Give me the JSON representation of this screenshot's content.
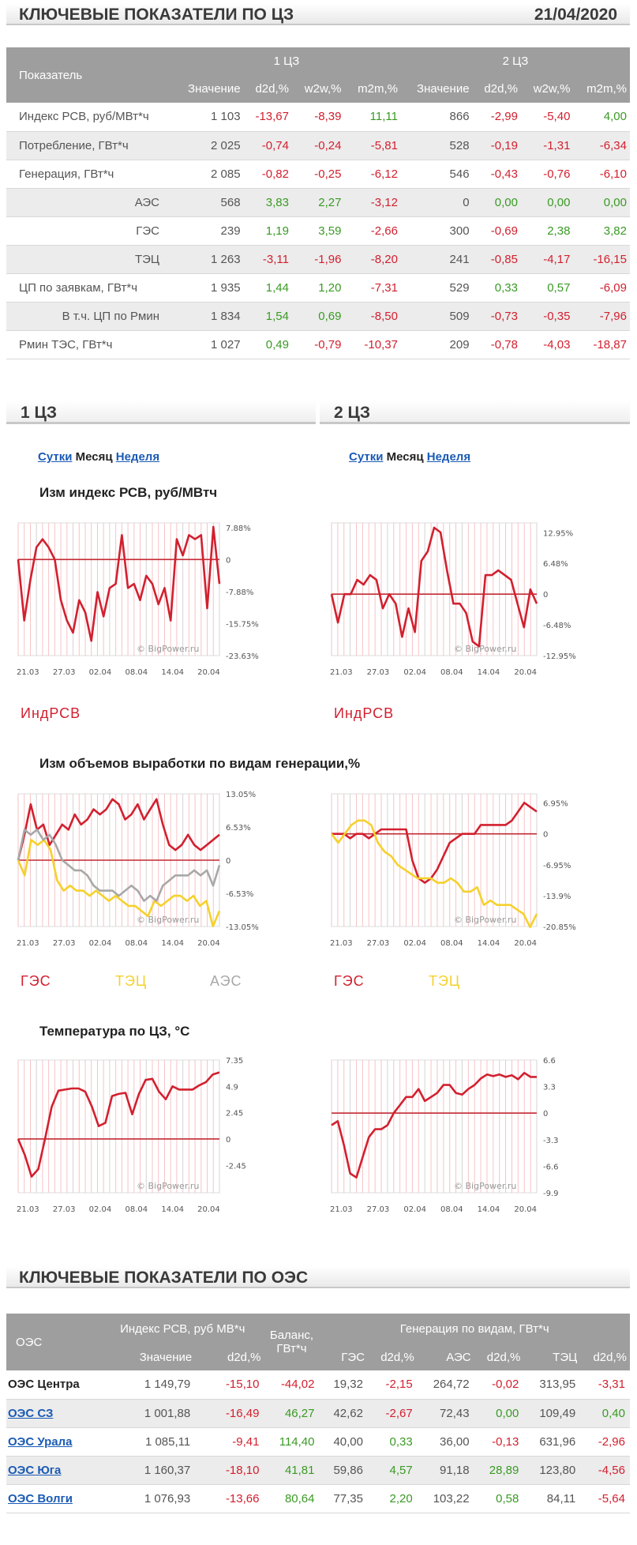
{
  "key_indicators": {
    "title": "КЛЮЧЕВЫЕ ПОКАЗАТЕЛИ ПО ЦЗ",
    "date": "21/04/2020",
    "col_label": "Показатель",
    "zone1": "1 ЦЗ",
    "zone2": "2 ЦЗ",
    "subcols": [
      "Значение",
      "d2d,%",
      "w2w,%",
      "m2m,%"
    ],
    "rows": [
      {
        "label": "Индекс РСВ, руб/МВт*ч",
        "sub": false,
        "v1": "1 103",
        "d1": "-13,67",
        "w1": "-8,39",
        "m1": "11,11",
        "v2": "866",
        "d2": "-2,99",
        "w2": "-5,40",
        "m2": "4,00"
      },
      {
        "label": "Потребление, ГВт*ч",
        "sub": false,
        "v1": "2 025",
        "d1": "-0,74",
        "w1": "-0,24",
        "m1": "-5,81",
        "v2": "528",
        "d2": "-0,19",
        "w2": "-1,31",
        "m2": "-6,34"
      },
      {
        "label": "Генерация, ГВт*ч",
        "sub": false,
        "v1": "2 085",
        "d1": "-0,82",
        "w1": "-0,25",
        "m1": "-6,12",
        "v2": "546",
        "d2": "-0,43",
        "w2": "-0,76",
        "m2": "-6,10"
      },
      {
        "label": "АЭС",
        "sub": true,
        "v1": "568",
        "d1": "3,83",
        "w1": "2,27",
        "m1": "-3,12",
        "v2": "0",
        "d2": "0,00",
        "w2": "0,00",
        "m2": "0,00"
      },
      {
        "label": "ГЭС",
        "sub": true,
        "v1": "239",
        "d1": "1,19",
        "w1": "3,59",
        "m1": "-2,66",
        "v2": "300",
        "d2": "-0,69",
        "w2": "2,38",
        "m2": "3,82"
      },
      {
        "label": "ТЭЦ",
        "sub": true,
        "v1": "1 263",
        "d1": "-3,11",
        "w1": "-1,96",
        "m1": "-8,20",
        "v2": "241",
        "d2": "-0,85",
        "w2": "-4,17",
        "m2": "-16,15"
      },
      {
        "label": "ЦП по заявкам, ГВт*ч",
        "sub": false,
        "v1": "1 935",
        "d1": "1,44",
        "w1": "1,20",
        "m1": "-7,31",
        "v2": "529",
        "d2": "0,33",
        "w2": "0,57",
        "m2": "-6,09"
      },
      {
        "label": "В т.ч. ЦП по Рмин",
        "sub": true,
        "v1": "1 834",
        "d1": "1,54",
        "w1": "0,69",
        "m1": "-8,50",
        "v2": "509",
        "d2": "-0,73",
        "w2": "-0,35",
        "m2": "-7,96"
      },
      {
        "label": "Рмин ТЭС, ГВт*ч",
        "sub": false,
        "v1": "1 027",
        "d1": "0,49",
        "w1": "-0,79",
        "m1": "-10,37",
        "v2": "209",
        "d2": "-0,78",
        "w2": "-4,03",
        "m2": "-18,87"
      }
    ]
  },
  "zones": {
    "z1_title": "1 ЦЗ",
    "z2_title": "2 ЦЗ",
    "tab_day": "Сутки",
    "tab_month": "Месяц",
    "tab_week": "Неделя"
  },
  "chart_titles": {
    "rsv": "Изм индекс РСВ, руб/МВтч",
    "gen": "Изм объемов выработки по видам генерации,%",
    "temp": "Температура по ЦЗ, °С"
  },
  "legend": {
    "rsv": "ИндРСВ",
    "ges": "ГЭС",
    "tec": "ТЭЦ",
    "aes": "АЭС"
  },
  "watermark": "© BigPower.ru",
  "colors": {
    "red": "#d2202f",
    "yellow": "#f5d12b",
    "gray": "#a8a8a8",
    "green": "#3a9a24",
    "header": "#9e9e9e"
  },
  "chart_data": [
    {
      "type": "line",
      "title": "Изм индекс РСВ, руб/МВтч",
      "zone": "1 ЦЗ",
      "x_ticks": [
        "21.03",
        "27.03",
        "02.04",
        "08.04",
        "14.04",
        "20.04"
      ],
      "y_ticks": [
        "7.88%",
        "0",
        "-7.88%",
        "-15.75%",
        "-23.63%"
      ],
      "ylim": [
        -23.63,
        9
      ],
      "series": [
        {
          "name": "ИндРСВ",
          "color": "#d2202f",
          "values": [
            0,
            -15,
            -5,
            3,
            5,
            3,
            0,
            -10,
            -15,
            -18,
            -10,
            -13,
            -20,
            -8,
            -14,
            -7,
            -6,
            6,
            -7,
            -6,
            -10,
            -4,
            -6,
            -11,
            -7,
            -15,
            5,
            1,
            6,
            5,
            6,
            -12,
            8,
            -6
          ]
        }
      ]
    },
    {
      "type": "line",
      "title": "Изм индекс РСВ, руб/МВтч",
      "zone": "2 ЦЗ",
      "x_ticks": [
        "21.03",
        "27.03",
        "02.04",
        "08.04",
        "14.04",
        "20.04"
      ],
      "y_ticks": [
        "12.95%",
        "6.48%",
        "0",
        "-6.48%",
        "-12.95%"
      ],
      "ylim": [
        -12.95,
        15
      ],
      "series": [
        {
          "name": "ИндРСВ",
          "color": "#d2202f",
          "values": [
            0,
            -6,
            0,
            0,
            3,
            2,
            4,
            3,
            -3,
            0,
            -2,
            -9,
            -3,
            -8,
            7,
            9,
            14,
            13,
            5,
            -2,
            -2,
            -4,
            -10,
            -11,
            4,
            4,
            5,
            4,
            3,
            -2,
            -7,
            1,
            -2
          ]
        }
      ]
    },
    {
      "type": "line",
      "title": "Изм объемов выработки по видам генерации,%",
      "zone": "1 ЦЗ",
      "x_ticks": [
        "21.03",
        "27.03",
        "02.04",
        "08.04",
        "14.04",
        "20.04"
      ],
      "y_ticks": [
        "13.05%",
        "6.53%",
        "0",
        "-6.53%",
        "-13.05%"
      ],
      "ylim": [
        -13.05,
        13.05
      ],
      "series": [
        {
          "name": "ГЭС",
          "color": "#d2202f",
          "values": [
            0,
            5,
            11,
            6,
            7,
            3,
            5,
            7,
            6,
            9,
            7,
            8,
            10,
            9,
            10,
            12,
            11,
            8,
            9,
            11,
            8,
            10,
            12,
            7,
            3,
            2,
            3,
            5,
            3,
            2,
            3,
            4,
            5
          ]
        },
        {
          "name": "ТЭЦ",
          "color": "#f5d12b",
          "values": [
            0,
            -3,
            4,
            3,
            4,
            2,
            -4,
            -6,
            -5,
            -6,
            -6,
            -7,
            -6,
            -7,
            -8,
            -7,
            -8,
            -9,
            -9,
            -10,
            -11,
            -8,
            -9,
            -8,
            -7,
            -7,
            -8,
            -7,
            -9,
            -8,
            -13,
            -10
          ]
        },
        {
          "name": "АЭС",
          "color": "#a8a8a8",
          "values": [
            0,
            6,
            5,
            6,
            4,
            5,
            3,
            0,
            -1,
            -2,
            -2,
            -3,
            -5,
            -6,
            -6,
            -6,
            -7,
            -6,
            -5,
            -6,
            -8,
            -7,
            -8,
            -5,
            -4,
            -3,
            -3,
            -3,
            -2,
            -3,
            -2,
            -5,
            -1
          ]
        }
      ]
    },
    {
      "type": "line",
      "title": "Изм объемов выработки по видам генерации,%",
      "zone": "2 ЦЗ",
      "x_ticks": [
        "21.03",
        "27.03",
        "02.04",
        "08.04",
        "14.04",
        "20.04"
      ],
      "y_ticks": [
        "6.95%",
        "0",
        "-6.95%",
        "-13.9%",
        "-20.85%"
      ],
      "ylim": [
        -20.85,
        9
      ],
      "series": [
        {
          "name": "ГЭС",
          "color": "#d2202f",
          "values": [
            0,
            0,
            0,
            -1,
            0,
            0,
            -1,
            0,
            1,
            1,
            1,
            1,
            1,
            -6,
            -10,
            -11,
            -10,
            -8,
            -5,
            -2,
            -1,
            0,
            0,
            0,
            2,
            2,
            2,
            2,
            2,
            3,
            5,
            7,
            6,
            5
          ]
        },
        {
          "name": "ТЭЦ",
          "color": "#f5d12b",
          "values": [
            0,
            -2,
            0,
            2,
            3,
            3,
            2,
            -2,
            -4,
            -5,
            -7,
            -8,
            -9,
            -10,
            -10,
            -10,
            -11,
            -11,
            -10,
            -11,
            -13,
            -13,
            -12,
            -16,
            -15,
            -16,
            -16,
            -16,
            -17,
            -18,
            -21,
            -18
          ]
        }
      ]
    },
    {
      "type": "line",
      "title": "Температура по ЦЗ, °С",
      "zone": "1 ЦЗ",
      "x_ticks": [
        "21.03",
        "27.03",
        "02.04",
        "08.04",
        "14.04",
        "20.04"
      ],
      "y_ticks": [
        "7.35",
        "4.9",
        "2.45",
        "0",
        "-2.45"
      ],
      "ylim": [
        -5,
        7.35
      ],
      "series": [
        {
          "name": "Температура",
          "color": "#d2202f",
          "values": [
            0,
            -1.5,
            -3.5,
            -2.8,
            0,
            3,
            4.5,
            4.6,
            4.7,
            4.7,
            4.4,
            3,
            1.2,
            1.5,
            4,
            4.2,
            4.3,
            2.3,
            4.2,
            5.5,
            5.6,
            4.4,
            3.7,
            4.9,
            4.6,
            4.6,
            4.6,
            5,
            5.3,
            6,
            6.2
          ]
        }
      ]
    },
    {
      "type": "line",
      "title": "Температура по ЦЗ, °С",
      "zone": "2 ЦЗ",
      "x_ticks": [
        "21.03",
        "27.03",
        "02.04",
        "08.04",
        "14.04",
        "20.04"
      ],
      "y_ticks": [
        "6.6",
        "3.3",
        "0",
        "-3.3",
        "-6.6",
        "-9.9"
      ],
      "ylim": [
        -9.9,
        6.6
      ],
      "series": [
        {
          "name": "Температура",
          "color": "#d2202f",
          "values": [
            -1.5,
            -1,
            -4,
            -7.5,
            -8,
            -5.5,
            -3,
            -2,
            -2,
            -1.5,
            0,
            1,
            2,
            2,
            3,
            1.5,
            2,
            2.5,
            3.5,
            3.5,
            2.5,
            2.3,
            3,
            3.5,
            4.3,
            4.8,
            4.6,
            4.8,
            4.5,
            4.7,
            4.2,
            5,
            4.5,
            4.5
          ]
        }
      ]
    }
  ],
  "oes": {
    "title": "КЛЮЧЕВЫЕ ПОКАЗАТЕЛИ ПО ОЭС",
    "col_oes": "ОЭС",
    "col_index": "Индекс РСВ, руб МВ*ч",
    "col_balance": "Баланс, ГВт*ч",
    "col_gen": "Генерация по видам, ГВт*ч",
    "sub_value": "Значение",
    "sub_d2d": "d2d,%",
    "sub_ges": "ГЭС",
    "sub_aes": "АЭС",
    "sub_tec": "ТЭЦ",
    "rows": [
      {
        "name": "ОЭС Центра",
        "link": false,
        "idx": "1 149,79",
        "d": "-15,10",
        "bal": "-44,02",
        "ges": "19,32",
        "dges": "-2,15",
        "aes": "264,72",
        "daes": "-0,02",
        "tec": "313,95",
        "dtec": "-3,31"
      },
      {
        "name": "ОЭС СЗ",
        "link": true,
        "idx": "1 001,88",
        "d": "-16,49",
        "bal": "46,27",
        "ges": "42,62",
        "dges": "-2,67",
        "aes": "72,43",
        "daes": "0,00",
        "tec": "109,49",
        "dtec": "0,40"
      },
      {
        "name": "ОЭС Урала",
        "link": true,
        "idx": "1 085,11",
        "d": "-9,41",
        "bal": "114,40",
        "ges": "40,00",
        "dges": "0,33",
        "aes": "36,00",
        "daes": "-0,13",
        "tec": "631,96",
        "dtec": "-2,96"
      },
      {
        "name": "ОЭС Юга",
        "link": true,
        "idx": "1 160,37",
        "d": "-18,10",
        "bal": "41,81",
        "ges": "59,86",
        "dges": "4,57",
        "aes": "91,18",
        "daes": "28,89",
        "tec": "123,80",
        "dtec": "-4,56"
      },
      {
        "name": "ОЭС Волги",
        "link": true,
        "idx": "1 076,93",
        "d": "-13,66",
        "bal": "80,64",
        "ges": "77,35",
        "dges": "2,20",
        "aes": "103,22",
        "daes": "0,58",
        "tec": "84,11",
        "dtec": "-5,64"
      }
    ]
  }
}
